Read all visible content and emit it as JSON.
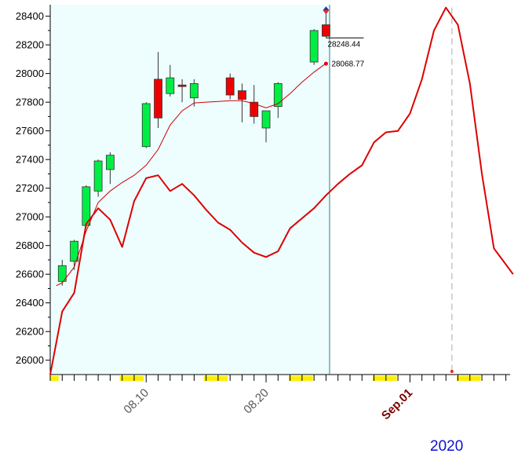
{
  "chart_data": {
    "type": "candlestick",
    "y_range": [
      25900,
      28480
    ],
    "y_ticks": [
      26000,
      26200,
      26400,
      26600,
      26800,
      27000,
      27200,
      27400,
      27600,
      27800,
      28000,
      28200,
      28400
    ],
    "x_slot_range": [
      0,
      38.7
    ],
    "date_labels": [
      {
        "text": "08.10",
        "slot": 8,
        "style": "normal"
      },
      {
        "text": "08.20",
        "slot": 18,
        "style": "normal"
      },
      {
        "text": "Sep.01",
        "slot": 30,
        "style": "bold"
      }
    ],
    "year_label": "2020",
    "shaded_region_end_slot": 23.3,
    "weekend_markers": [
      {
        "from": 0,
        "to": 0.7
      },
      {
        "from": 5.8,
        "to": 7.8
      },
      {
        "from": 12.8,
        "to": 14.8
      },
      {
        "from": 19.9,
        "to": 21.9
      },
      {
        "from": 26.9,
        "to": 28.9
      },
      {
        "from": 33.9,
        "to": 35.9
      }
    ],
    "candles": [
      {
        "slot": 1,
        "open": 26550,
        "high": 26700,
        "low": 26520,
        "close": 26660
      },
      {
        "slot": 2,
        "open": 26690,
        "high": 26840,
        "low": 26630,
        "close": 26830
      },
      {
        "slot": 3,
        "open": 26940,
        "high": 27220,
        "low": 26920,
        "close": 27210
      },
      {
        "slot": 4,
        "open": 27180,
        "high": 27400,
        "low": 27140,
        "close": 27390
      },
      {
        "slot": 5,
        "open": 27330,
        "high": 27450,
        "low": 27230,
        "close": 27430
      },
      {
        "slot": 8,
        "open": 27490,
        "high": 27800,
        "low": 27480,
        "close": 27790
      },
      {
        "slot": 9,
        "open": 27960,
        "high": 28150,
        "low": 27620,
        "close": 27690
      },
      {
        "slot": 10,
        "open": 27860,
        "high": 28060,
        "low": 27840,
        "close": 27970
      },
      {
        "slot": 11,
        "open": 27920,
        "high": 27960,
        "low": 27800,
        "close": 27910
      },
      {
        "slot": 12,
        "open": 27830,
        "high": 27960,
        "low": 27770,
        "close": 27930
      },
      {
        "slot": 15,
        "open": 27970,
        "high": 28000,
        "low": 27820,
        "close": 27850
      },
      {
        "slot": 16,
        "open": 27880,
        "high": 27930,
        "low": 27660,
        "close": 27820
      },
      {
        "slot": 17,
        "open": 27800,
        "high": 27920,
        "low": 27650,
        "close": 27700
      },
      {
        "slot": 18,
        "open": 27620,
        "high": 27740,
        "low": 27520,
        "close": 27740
      },
      {
        "slot": 19,
        "open": 27770,
        "high": 27940,
        "low": 27690,
        "close": 27930
      },
      {
        "slot": 22,
        "open": 28080,
        "high": 28310,
        "low": 28060,
        "close": 28300
      },
      {
        "slot": 23,
        "open": 28340,
        "high": 28430,
        "low": 28250,
        "close": 28260
      }
    ],
    "moving_average": [
      {
        "slot": 0.5,
        "value": 26520
      },
      {
        "slot": 1,
        "value": 26540
      },
      {
        "slot": 2,
        "value": 26650
      },
      {
        "slot": 3,
        "value": 26900
      },
      {
        "slot": 4,
        "value": 27100
      },
      {
        "slot": 5,
        "value": 27180
      },
      {
        "slot": 6,
        "value": 27240
      },
      {
        "slot": 7,
        "value": 27290
      },
      {
        "slot": 8,
        "value": 27360
      },
      {
        "slot": 9,
        "value": 27470
      },
      {
        "slot": 10,
        "value": 27640
      },
      {
        "slot": 11,
        "value": 27740
      },
      {
        "slot": 12,
        "value": 27795
      },
      {
        "slot": 13,
        "value": 27800
      },
      {
        "slot": 14,
        "value": 27805
      },
      {
        "slot": 15,
        "value": 27810
      },
      {
        "slot": 16,
        "value": 27810
      },
      {
        "slot": 17,
        "value": 27790
      },
      {
        "slot": 18,
        "value": 27760
      },
      {
        "slot": 19,
        "value": 27790
      },
      {
        "slot": 20,
        "value": 27860
      },
      {
        "slot": 21,
        "value": 27940
      },
      {
        "slot": 22,
        "value": 28010
      },
      {
        "slot": 23,
        "value": 28070
      }
    ],
    "projection_line": [
      {
        "slot": 0,
        "value": 25900
      },
      {
        "slot": 1,
        "value": 26340
      },
      {
        "slot": 2,
        "value": 26470
      },
      {
        "slot": 3,
        "value": 26950
      },
      {
        "slot": 4,
        "value": 27060
      },
      {
        "slot": 5,
        "value": 26980
      },
      {
        "slot": 6,
        "value": 26790
      },
      {
        "slot": 7,
        "value": 27110
      },
      {
        "slot": 8,
        "value": 27270
      },
      {
        "slot": 9,
        "value": 27290
      },
      {
        "slot": 10,
        "value": 27180
      },
      {
        "slot": 11,
        "value": 27230
      },
      {
        "slot": 12,
        "value": 27150
      },
      {
        "slot": 13,
        "value": 27050
      },
      {
        "slot": 14,
        "value": 26960
      },
      {
        "slot": 15,
        "value": 26910
      },
      {
        "slot": 16,
        "value": 26820
      },
      {
        "slot": 17,
        "value": 26750
      },
      {
        "slot": 18,
        "value": 26720
      },
      {
        "slot": 19,
        "value": 26760
      },
      {
        "slot": 20,
        "value": 26920
      },
      {
        "slot": 21,
        "value": 26990
      },
      {
        "slot": 22,
        "value": 27060
      },
      {
        "slot": 23,
        "value": 27150
      },
      {
        "slot": 24,
        "value": 27230
      },
      {
        "slot": 25,
        "value": 27300
      },
      {
        "slot": 26,
        "value": 27360
      },
      {
        "slot": 27,
        "value": 27520
      },
      {
        "slot": 28,
        "value": 27590
      },
      {
        "slot": 29,
        "value": 27600
      },
      {
        "slot": 30,
        "value": 27720
      },
      {
        "slot": 31,
        "value": 27960
      },
      {
        "slot": 32,
        "value": 28300
      },
      {
        "slot": 33,
        "value": 28460
      },
      {
        "slot": 34,
        "value": 28340
      },
      {
        "slot": 35,
        "value": 27930
      },
      {
        "slot": 36,
        "value": 27300
      },
      {
        "slot": 37,
        "value": 26780
      },
      {
        "slot": 38.6,
        "value": 26600
      }
    ],
    "peak_marker": {
      "slot": 33.5,
      "value": 28460
    },
    "annotations": [
      {
        "text": "28248.44",
        "slot": 23,
        "value": 28248.44,
        "kind": "box"
      },
      {
        "text": "28068.77",
        "slot": 23,
        "value": 28068.77,
        "kind": "dot"
      }
    ],
    "colors": {
      "up": "#00ee44",
      "down": "#ee0000",
      "projection": "#dd0000",
      "moving_average": "#cc0000",
      "shade": "#eefefe",
      "weekend": "#ffee00",
      "cursor": "#2a7a7a",
      "diamond_top": "#1a3aaa",
      "diamond_bottom": "#ee2222"
    }
  }
}
